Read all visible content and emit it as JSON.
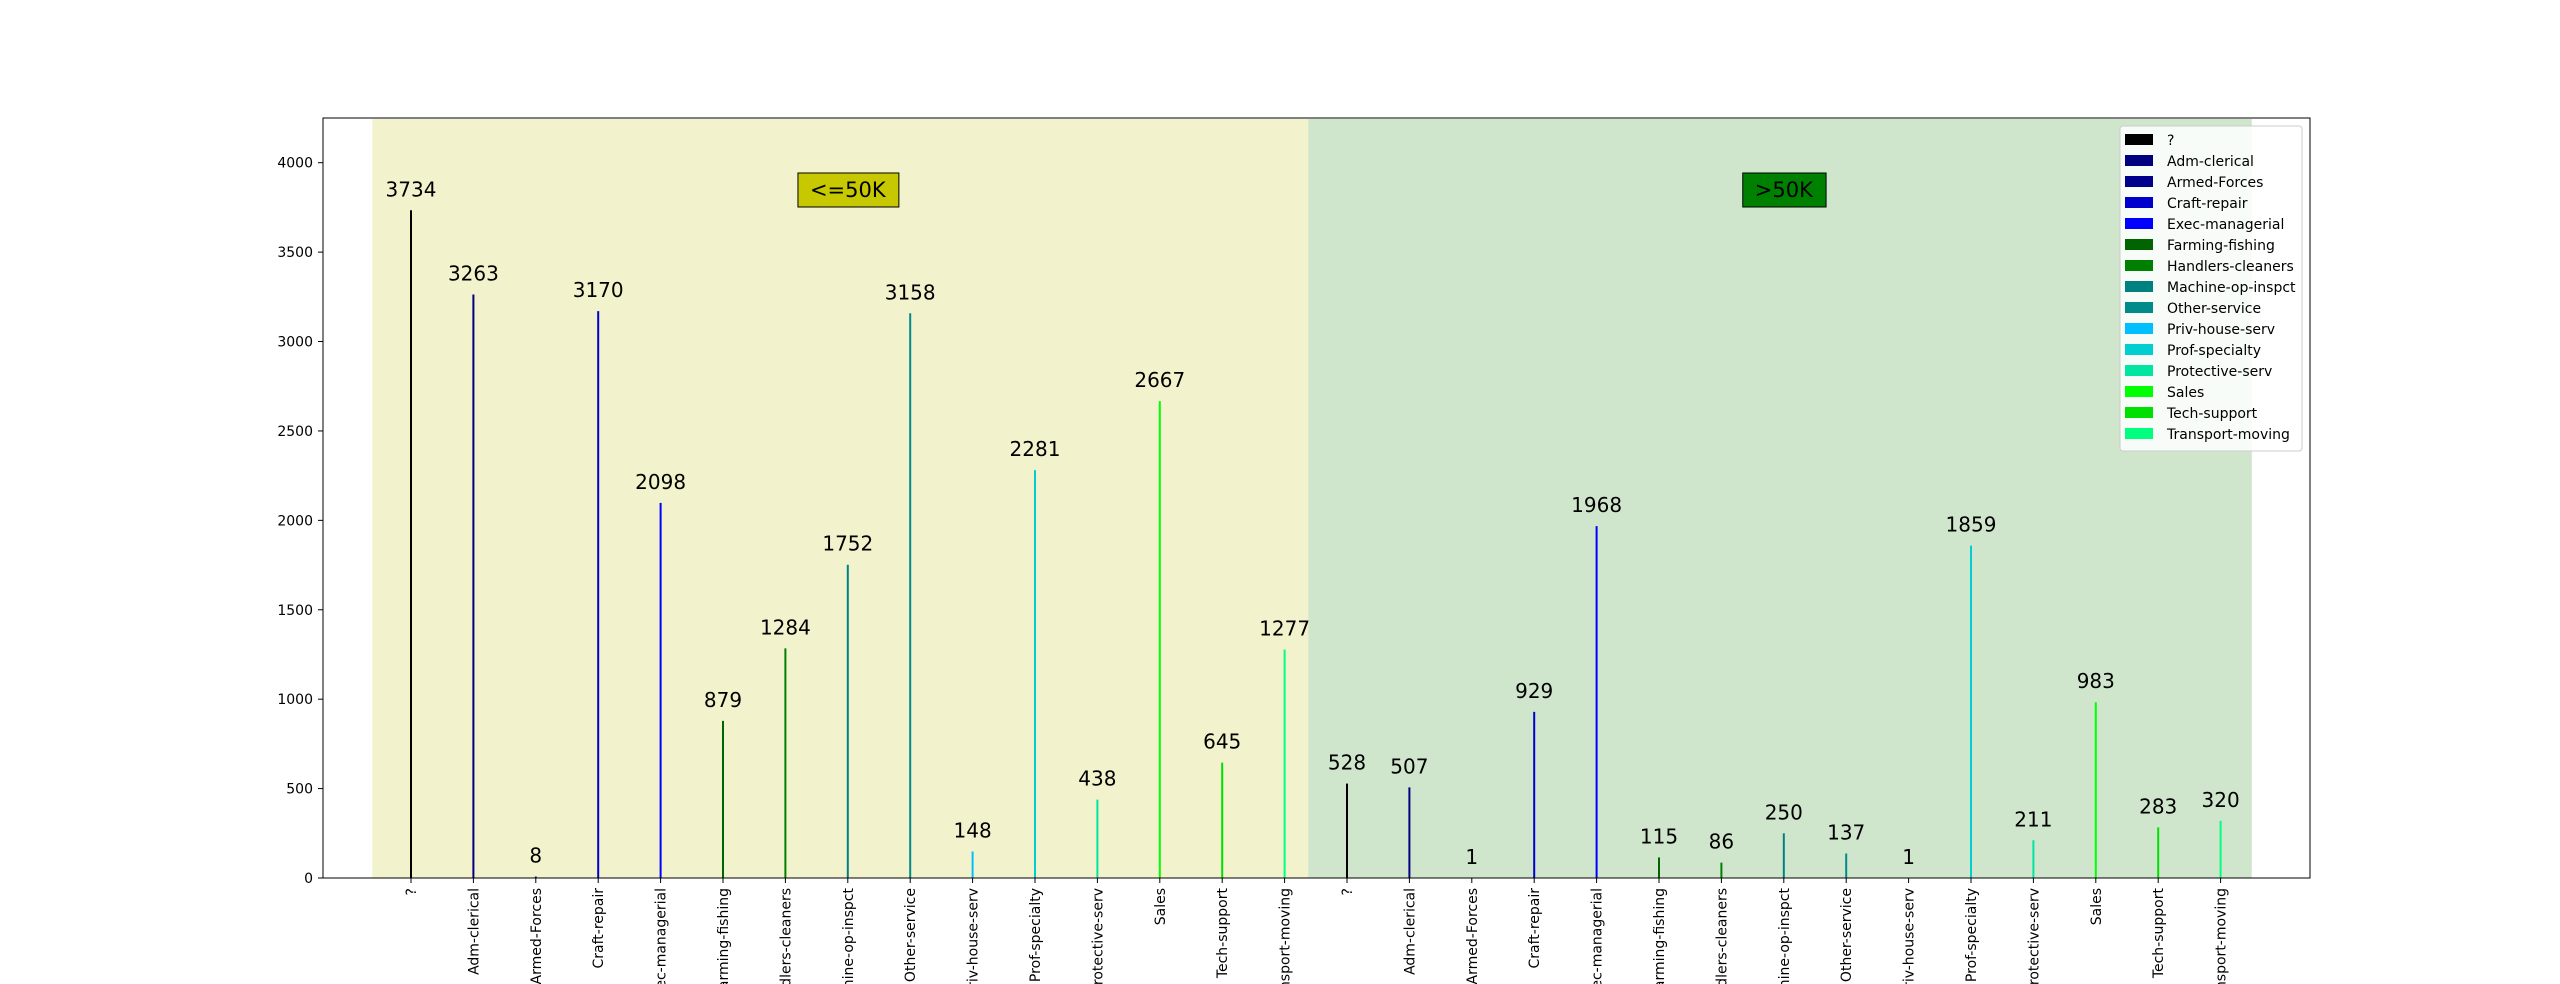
{
  "chart_data": {
    "type": "bar",
    "title": "",
    "xlabel": "",
    "ylabel": "",
    "ylim": [
      0,
      4250
    ],
    "yticks": [
      0,
      500,
      1000,
      1500,
      2000,
      2500,
      3000,
      3500,
      4000
    ],
    "legend_position": "top-right",
    "grid": false,
    "categories": [
      "?",
      "Adm-clerical",
      "Armed-Forces",
      "Craft-repair",
      "Exec-managerial",
      "Farming-fishing",
      "Handlers-cleaners",
      "Machine-op-inspct",
      "Other-service",
      "Priv-house-serv",
      "Prof-specialty",
      "Protective-serv",
      "Sales",
      "Tech-support",
      "Transport-moving"
    ],
    "colors": [
      "#000000",
      "#000080",
      "#00008b",
      "#0000cd",
      "#0000ff",
      "#006400",
      "#008000",
      "#008080",
      "#008b8b",
      "#00bfff",
      "#00ced1",
      "#00e5a0",
      "#00ff00",
      "#00e000",
      "#00ff7f"
    ],
    "groups": [
      {
        "label": "<=50K",
        "label_bg": "#c8c800",
        "band_color": "#f2f2cc",
        "values": [
          3734,
          3263,
          8,
          3170,
          2098,
          879,
          1284,
          1752,
          3158,
          148,
          2281,
          438,
          2667,
          645,
          1277
        ]
      },
      {
        "label": ">50K",
        "label_bg": "#008000",
        "band_color": "#cfe6cd",
        "values": [
          528,
          507,
          1,
          929,
          1968,
          115,
          86,
          250,
          137,
          1,
          1859,
          211,
          983,
          283,
          320
        ]
      }
    ]
  }
}
